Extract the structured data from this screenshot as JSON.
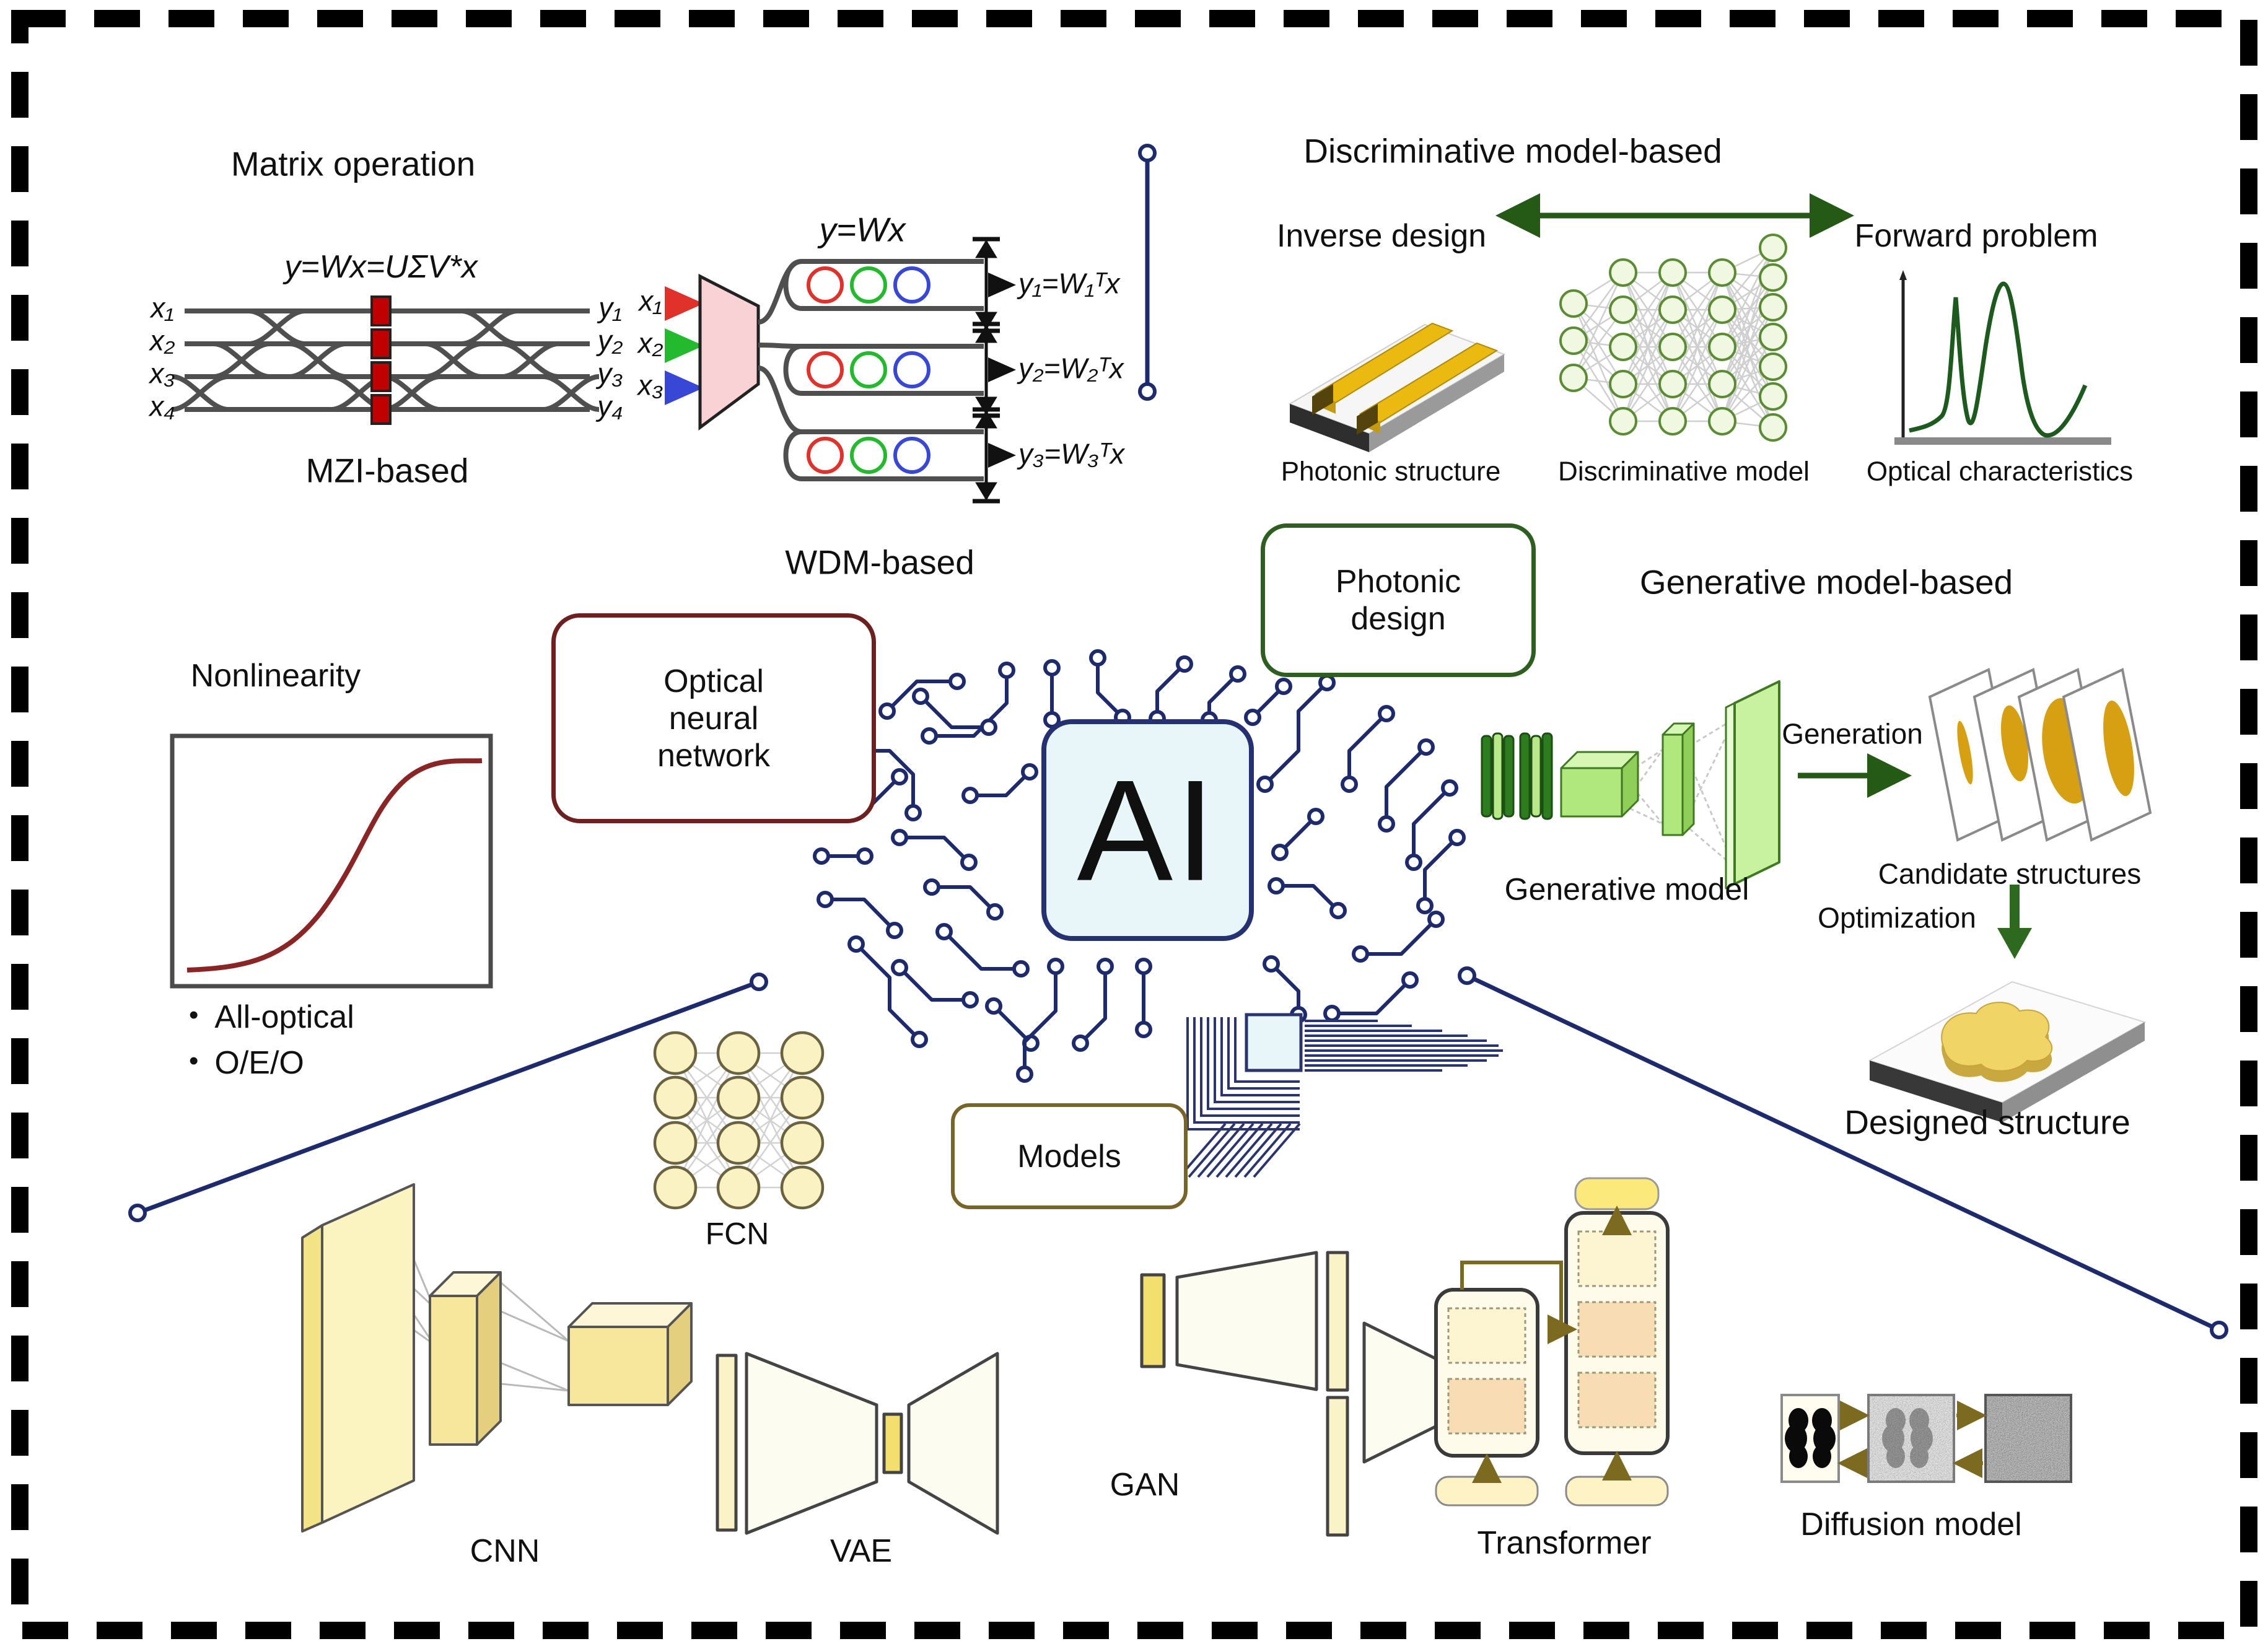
{
  "diagram": {
    "matrix_operation": {
      "title": "Matrix operation",
      "mzi": {
        "equation": "y=Wx=UΣV*x",
        "inputs": [
          "x₁",
          "x₂",
          "x₃",
          "x₄"
        ],
        "outputs": [
          "y₁",
          "y₂",
          "y₃",
          "y₄"
        ],
        "caption": "MZI-based"
      },
      "wdm": {
        "equation": "y=Wx",
        "inputs": [
          "x₁",
          "x₂",
          "x₃"
        ],
        "outputs": [
          "y₁=W₁ᵀx",
          "y₂=W₂ᵀx",
          "y₃=W₃ᵀx"
        ],
        "caption": "WDM-based"
      }
    },
    "nonlinearity": {
      "title": "Nonlinearity",
      "bullets": [
        "All-optical",
        "O/E/O"
      ]
    },
    "optical_neural_network": {
      "lines": [
        "Optical",
        "neural",
        "network"
      ]
    },
    "photonic_design": {
      "lines": [
        "Photonic",
        "design"
      ]
    },
    "discriminative": {
      "title": "Discriminative model-based",
      "left_label": "Inverse design",
      "right_label": "Forward problem",
      "captions": [
        "Photonic structure",
        "Discriminative model",
        "Optical characteristics"
      ]
    },
    "generative": {
      "title": "Generative model-based",
      "model_caption": "Generative model",
      "generation_label": "Generation",
      "candidates_caption": "Candidate structures",
      "optimization_label": "Optimization",
      "designed_caption": "Designed structure"
    },
    "center": {
      "chip_label": "AI",
      "models_box_label": "Models"
    },
    "models": {
      "fcn": "FCN",
      "cnn": "CNN",
      "vae": "VAE",
      "gan": "GAN",
      "transformer": "Transformer",
      "diffusion": "Diffusion model"
    },
    "colors": {
      "accent_dark_green": "#2d5a1b",
      "accent_navy": "#1e2a6e",
      "accent_dark_red": "#8b2424",
      "mzi_phase_shifter_red": "#c00000",
      "ring_red": "#e0312a",
      "ring_green": "#23bb2d",
      "ring_blue": "#3947d6",
      "gold": "#d7a012",
      "model_yellow": "#f7e79c",
      "gen_green_light": "#b0e87e",
      "gen_green_dark": "#2e7c20",
      "ai_chip_fill": "#e8f6fa",
      "transformer_orange": "#f8dcb4"
    }
  }
}
